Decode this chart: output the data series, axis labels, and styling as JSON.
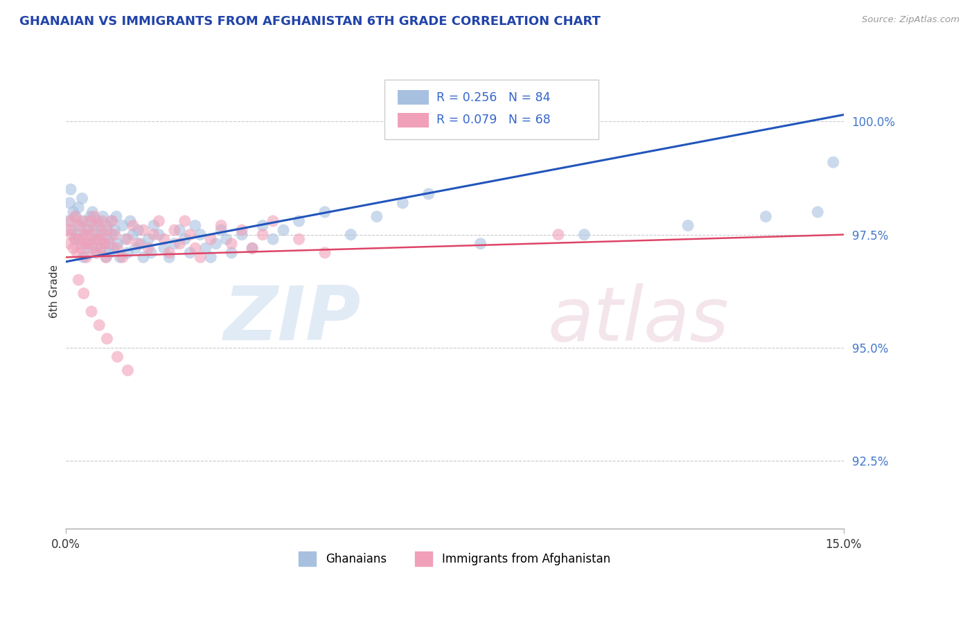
{
  "title": "GHANAIAN VS IMMIGRANTS FROM AFGHANISTAN 6TH GRADE CORRELATION CHART",
  "source_text": "Source: ZipAtlas.com",
  "ylabel": "6th Grade",
  "xmin": 0.0,
  "xmax": 15.0,
  "ymin": 91.0,
  "ymax": 101.5,
  "yticks": [
    92.5,
    95.0,
    97.5,
    100.0
  ],
  "ytick_labels": [
    "92.5%",
    "95.0%",
    "97.5%",
    "100.0%"
  ],
  "xticks": [
    0.0,
    15.0
  ],
  "xtick_labels": [
    "0.0%",
    "15.0%"
  ],
  "blue_color": "#a8c0e0",
  "pink_color": "#f0a0b8",
  "blue_line_color": "#2255bb",
  "pink_line_color": "#dd4466",
  "blue_trend_x0": 0.0,
  "blue_trend_y0": 96.9,
  "blue_trend_x1": 15.0,
  "blue_trend_y1": 100.15,
  "pink_trend_x0": 0.0,
  "pink_trend_y0": 97.0,
  "pink_trend_x1": 15.0,
  "pink_trend_y1": 97.5,
  "blue_x": [
    0.05,
    0.08,
    0.1,
    0.12,
    0.15,
    0.18,
    0.2,
    0.22,
    0.25,
    0.28,
    0.3,
    0.32,
    0.35,
    0.38,
    0.4,
    0.42,
    0.45,
    0.48,
    0.5,
    0.52,
    0.55,
    0.58,
    0.6,
    0.62,
    0.65,
    0.68,
    0.7,
    0.72,
    0.75,
    0.78,
    0.8,
    0.82,
    0.85,
    0.88,
    0.9,
    0.92,
    0.95,
    0.98,
    1.0,
    1.05,
    1.1,
    1.15,
    1.2,
    1.25,
    1.3,
    1.35,
    1.4,
    1.45,
    1.5,
    1.6,
    1.65,
    1.7,
    1.8,
    1.9,
    2.0,
    2.1,
    2.2,
    2.3,
    2.4,
    2.5,
    2.6,
    2.7,
    2.8,
    2.9,
    3.0,
    3.1,
    3.2,
    3.4,
    3.6,
    3.8,
    4.0,
    4.2,
    4.5,
    5.0,
    5.5,
    6.0,
    6.5,
    7.0,
    8.0,
    10.0,
    12.0,
    13.5,
    14.5,
    14.8
  ],
  "blue_y": [
    97.8,
    98.2,
    98.5,
    97.6,
    98.0,
    97.4,
    97.9,
    97.5,
    98.1,
    97.7,
    97.3,
    98.3,
    97.0,
    97.8,
    97.5,
    97.2,
    97.6,
    97.9,
    97.3,
    98.0,
    97.7,
    97.4,
    97.1,
    97.8,
    97.5,
    97.2,
    97.6,
    97.9,
    97.3,
    97.0,
    97.7,
    97.4,
    97.1,
    97.8,
    97.5,
    97.2,
    97.6,
    97.9,
    97.3,
    97.0,
    97.7,
    97.4,
    97.1,
    97.8,
    97.5,
    97.2,
    97.6,
    97.3,
    97.0,
    97.4,
    97.1,
    97.7,
    97.5,
    97.2,
    97.0,
    97.3,
    97.6,
    97.4,
    97.1,
    97.7,
    97.5,
    97.2,
    97.0,
    97.3,
    97.6,
    97.4,
    97.1,
    97.5,
    97.2,
    97.7,
    97.4,
    97.6,
    97.8,
    98.0,
    97.5,
    97.9,
    98.2,
    98.4,
    97.3,
    97.5,
    97.7,
    97.9,
    98.0,
    99.1
  ],
  "pink_x": [
    0.05,
    0.08,
    0.1,
    0.12,
    0.15,
    0.18,
    0.2,
    0.22,
    0.25,
    0.28,
    0.3,
    0.32,
    0.35,
    0.38,
    0.4,
    0.42,
    0.45,
    0.48,
    0.5,
    0.52,
    0.55,
    0.58,
    0.6,
    0.62,
    0.65,
    0.68,
    0.7,
    0.72,
    0.75,
    0.78,
    0.8,
    0.85,
    0.9,
    0.95,
    1.0,
    1.1,
    1.2,
    1.3,
    1.4,
    1.5,
    1.6,
    1.7,
    1.8,
    1.9,
    2.0,
    2.1,
    2.2,
    2.3,
    2.4,
    2.5,
    2.6,
    2.8,
    3.0,
    3.2,
    3.4,
    3.6,
    3.8,
    4.0,
    4.5,
    5.0,
    0.25,
    0.35,
    0.5,
    0.65,
    0.8,
    1.0,
    1.2,
    9.5
  ],
  "pink_y": [
    97.6,
    97.3,
    97.8,
    97.5,
    97.2,
    97.9,
    97.4,
    97.1,
    97.7,
    97.4,
    97.2,
    97.8,
    97.5,
    97.3,
    97.0,
    97.6,
    97.3,
    97.8,
    97.5,
    97.2,
    97.9,
    97.4,
    97.1,
    97.7,
    97.4,
    97.2,
    97.8,
    97.5,
    97.3,
    97.0,
    97.6,
    97.3,
    97.8,
    97.5,
    97.2,
    97.0,
    97.4,
    97.7,
    97.3,
    97.6,
    97.2,
    97.5,
    97.8,
    97.4,
    97.1,
    97.6,
    97.3,
    97.8,
    97.5,
    97.2,
    97.0,
    97.4,
    97.7,
    97.3,
    97.6,
    97.2,
    97.5,
    97.8,
    97.4,
    97.1,
    96.5,
    96.2,
    95.8,
    95.5,
    95.2,
    94.8,
    94.5,
    97.5
  ],
  "note_blue_R": "R = 0.256",
  "note_blue_N": "N = 84",
  "note_pink_R": "R = 0.079",
  "note_pink_N": "N = 68",
  "legend_label_blue": "Ghanaians",
  "legend_label_pink": "Immigrants from Afghanistan"
}
